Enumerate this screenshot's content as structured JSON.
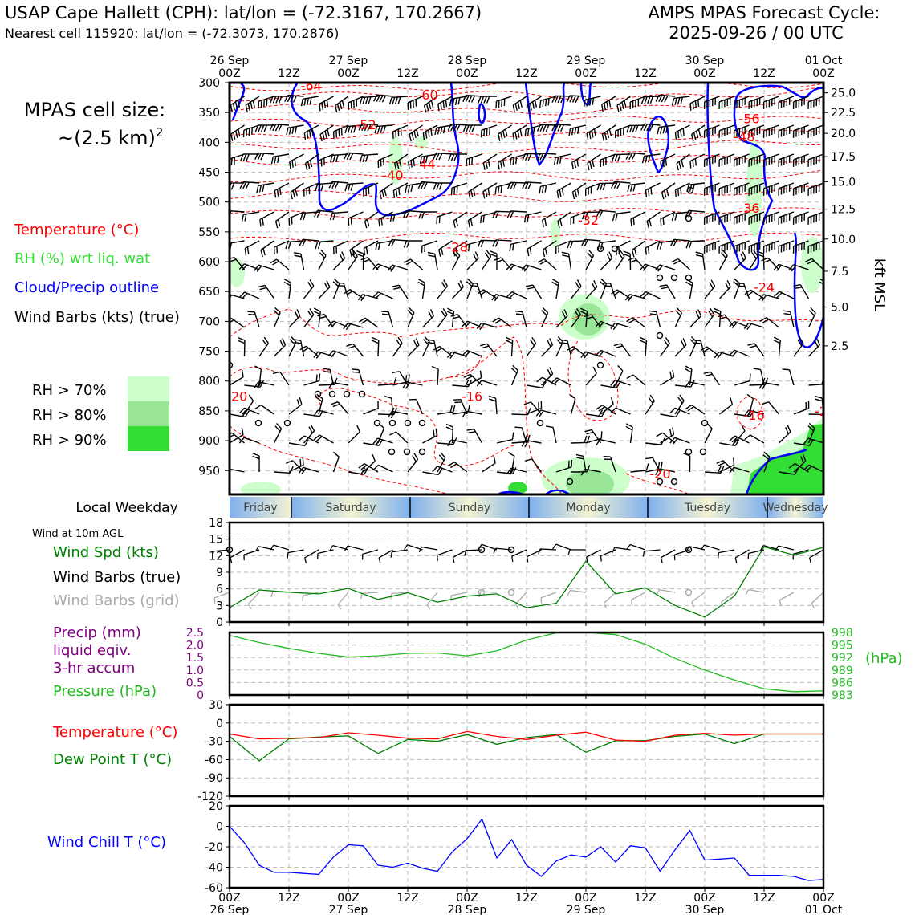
{
  "header": {
    "title_left": "USAP Cape Hallett (CPH): lat/lon = (-72.3167, 170.2667)",
    "subtitle_left": "Nearest cell 115920: lat/lon = (-72.3073, 170.2876)",
    "title_right_1": "AMPS MPAS Forecast Cycle:",
    "title_right_2": "2025-09-26 / 00 UTC",
    "cell_size_1": "MPAS cell size:",
    "cell_size_2": "~(2.5 km)",
    "cell_size_sup": "2"
  },
  "legend": {
    "temperature": "Temperature (°C)",
    "rh": "RH (%) wrt liq. wat",
    "cloud": "Cloud/Precip outline",
    "barbs": "Wind Barbs (kts) (true)",
    "rh70": "RH > 70%",
    "rh80": "RH > 80%",
    "rh90": "RH > 90%",
    "colors": {
      "rh70": "#ccffcc",
      "rh80": "#99e699",
      "rh90": "#33dd33",
      "temp": "#ff0000",
      "cloud": "#0000ff"
    }
  },
  "weekday_bar": {
    "label": "Local Weekday",
    "days": [
      "Friday",
      "Saturday",
      "Sunday",
      "Monday",
      "Tuesday",
      "Wednesday"
    ]
  },
  "chart_data": [
    {
      "type": "contour",
      "name": "profile",
      "x_ticks_top": [
        {
          "date": "26 Sep",
          "time": "00Z"
        },
        {
          "date": "",
          "time": "12Z"
        },
        {
          "date": "27 Sep",
          "time": "00Z"
        },
        {
          "date": "",
          "time": "12Z"
        },
        {
          "date": "28 Sep",
          "time": "00Z"
        },
        {
          "date": "",
          "time": "12Z"
        },
        {
          "date": "29 Sep",
          "time": "00Z"
        },
        {
          "date": "",
          "time": "12Z"
        },
        {
          "date": "30 Sep",
          "time": "00Z"
        },
        {
          "date": "",
          "time": "12Z"
        },
        {
          "date": "01 Oct",
          "time": "00Z"
        }
      ],
      "x_range_hours": [
        0,
        120
      ],
      "pressure_ticks": [
        300,
        350,
        400,
        450,
        500,
        550,
        600,
        650,
        700,
        750,
        800,
        850,
        900,
        950
      ],
      "pressure_range": [
        990,
        300
      ],
      "kft_ticks": [
        {
          "label": "25.0",
          "p": 317
        },
        {
          "label": "22.5",
          "p": 350
        },
        {
          "label": "20.0",
          "p": 385
        },
        {
          "label": "17.5",
          "p": 424
        },
        {
          "label": "15.0",
          "p": 466
        },
        {
          "label": "12.5",
          "p": 512
        },
        {
          "label": "10.0",
          "p": 562
        },
        {
          "label": "7.5",
          "p": 616
        },
        {
          "label": "5.0",
          "p": 676
        },
        {
          "label": "2.5",
          "p": 741
        }
      ],
      "kft_label": "kft MSL",
      "temp_contour_labels": [
        {
          "label": "-64",
          "t": 16.5,
          "p": 305
        },
        {
          "label": "-60",
          "t": 40,
          "p": 320
        },
        {
          "label": "-56",
          "t": 105,
          "p": 360
        },
        {
          "label": "-52",
          "t": 27.5,
          "p": 370
        },
        {
          "label": "-48",
          "t": 104,
          "p": 390
        },
        {
          "label": "-44",
          "t": 39.5,
          "p": 436
        },
        {
          "label": "-40",
          "t": 33,
          "p": 455
        },
        {
          "label": "-36",
          "t": 105,
          "p": 510
        },
        {
          "label": "-32",
          "t": 72.5,
          "p": 530
        },
        {
          "label": "-28",
          "t": 46,
          "p": 575
        },
        {
          "label": "-24",
          "t": 108,
          "p": 642
        },
        {
          "label": "-20",
          "t": 1.5,
          "p": 825
        },
        {
          "label": "-16",
          "t": 49,
          "p": 825
        },
        {
          "label": "-16",
          "t": 106,
          "p": 857
        },
        {
          "label": "-20",
          "t": 87,
          "p": 955
        },
        {
          "label": "-2",
          "t": 119.5,
          "p": 850
        }
      ],
      "temp_levels": [
        -64,
        -60,
        -56,
        -52,
        -48,
        -44,
        -40,
        -36,
        -32,
        -28,
        -24,
        -20,
        -16
      ]
    },
    {
      "type": "line",
      "name": "wind",
      "title": "Wind at 10m AGL",
      "series_labels": [
        "Wind Spd (kts)",
        "Wind Barbs (true)",
        "Wind Barbs (grid)"
      ],
      "ylim": [
        0,
        18
      ],
      "yticks": [
        0,
        3,
        6,
        9,
        12,
        15,
        18
      ],
      "x_hours": [
        0,
        6,
        12,
        18,
        24,
        30,
        36,
        42,
        48,
        54,
        60,
        66,
        72,
        78,
        84,
        90,
        96,
        102,
        108,
        114,
        120
      ],
      "series": [
        {
          "name": "Wind Spd (kts)",
          "color": "#008000",
          "values": [
            2.6,
            5.8,
            5.4,
            5.1,
            6.1,
            4.1,
            5.3,
            3.6,
            4.7,
            5.1,
            2.6,
            3.4,
            11.0,
            5.1,
            6.2,
            3.0,
            0.9,
            4.7,
            13.6,
            12.1,
            13.5
          ]
        }
      ]
    },
    {
      "type": "line",
      "name": "precip_pressure",
      "series_labels": [
        "Precip (mm)",
        "liquid eqiv.",
        "3-hr accum",
        "Pressure (hPa)"
      ],
      "y_left_ticks": [
        "2.5",
        "2.0",
        "1.5",
        "1.0",
        "0.5",
        "0"
      ],
      "y_right_ticks": [
        "998",
        "995",
        "992",
        "989",
        "986",
        "983"
      ],
      "y_right_label": "(hPa)",
      "ylim_right": [
        983,
        998
      ],
      "x_hours": [
        0,
        6,
        12,
        18,
        24,
        30,
        36,
        42,
        48,
        54,
        60,
        66,
        72,
        78,
        84,
        90,
        96,
        102,
        108,
        114,
        120
      ],
      "series": [
        {
          "name": "Pressure (hPa)",
          "color": "#22bb22",
          "values": [
            997.3,
            995.6,
            994.2,
            993.0,
            992.1,
            992.4,
            993.0,
            993.1,
            992.4,
            993.6,
            996.2,
            997.9,
            998.0,
            997.5,
            995.2,
            991.8,
            989.0,
            986.6,
            984.5,
            983.8,
            984.0
          ]
        }
      ]
    },
    {
      "type": "line",
      "name": "temperature",
      "series_labels": [
        "Temperature (°C)",
        "Dew Point T (°C)"
      ],
      "ylim": [
        -120,
        30
      ],
      "yticks": [
        30,
        0,
        -30,
        -60,
        -90,
        -120
      ],
      "x_hours": [
        0,
        6,
        12,
        18,
        24,
        30,
        36,
        42,
        48,
        54,
        60,
        66,
        72,
        78,
        84,
        90,
        96,
        102,
        108,
        114,
        120
      ],
      "series": [
        {
          "name": "Temperature (°C)",
          "color": "#ff0000",
          "values": [
            -18,
            -26,
            -25,
            -24,
            -16,
            -20,
            -25,
            -26,
            -14,
            -22,
            -27,
            -20,
            -15,
            -28,
            -30,
            -20,
            -17,
            -20,
            -18,
            -18,
            -18
          ]
        },
        {
          "name": "Dew Point T (°C)",
          "color": "#008000",
          "values": [
            -22,
            -62,
            -26,
            -23,
            -21,
            -50,
            -27,
            -30,
            -19,
            -35,
            -24,
            -19,
            -48,
            -29,
            -29,
            -22,
            -18,
            -34,
            -18,
            -18,
            -18
          ]
        }
      ]
    },
    {
      "type": "line",
      "name": "windchill",
      "series_labels": [
        "Wind Chill T (°C)"
      ],
      "ylim": [
        -60,
        20
      ],
      "yticks": [
        20,
        0,
        -20,
        -40,
        -60
      ],
      "x_ticks_bottom": [
        {
          "time": "00Z",
          "date": "26 Sep"
        },
        {
          "time": "12Z",
          "date": ""
        },
        {
          "time": "00Z",
          "date": "27 Sep"
        },
        {
          "time": "12Z",
          "date": ""
        },
        {
          "time": "00Z",
          "date": "28 Sep"
        },
        {
          "time": "12Z",
          "date": ""
        },
        {
          "time": "00Z",
          "date": "29 Sep"
        },
        {
          "time": "12Z",
          "date": ""
        },
        {
          "time": "00Z",
          "date": "30 Sep"
        },
        {
          "time": "12Z",
          "date": ""
        },
        {
          "time": "00Z",
          "date": "01 Oct"
        }
      ],
      "x_hours": [
        0,
        3,
        6,
        9,
        12,
        15,
        18,
        21,
        24,
        27,
        30,
        33,
        36,
        39,
        42,
        45,
        48,
        51,
        54,
        57,
        60,
        63,
        66,
        69,
        72,
        75,
        78,
        81,
        84,
        87,
        90,
        93,
        96,
        99,
        102,
        105,
        108,
        111,
        114,
        117,
        120
      ],
      "series": [
        {
          "name": "Wind Chill T (°C)",
          "color": "#0000ff",
          "values": [
            0,
            -16,
            -38,
            -45,
            -45,
            -46,
            -47,
            -30,
            -18,
            -19,
            -38,
            -40,
            -36,
            -41,
            -44,
            -25,
            -12,
            7,
            -31,
            -13,
            -38,
            -49,
            -34,
            -28,
            -30,
            -20,
            -35,
            -19,
            -21,
            -44,
            -23,
            -4,
            -33,
            -32,
            -31,
            -48,
            -48,
            -48,
            -49,
            -53,
            -52
          ]
        }
      ]
    }
  ]
}
